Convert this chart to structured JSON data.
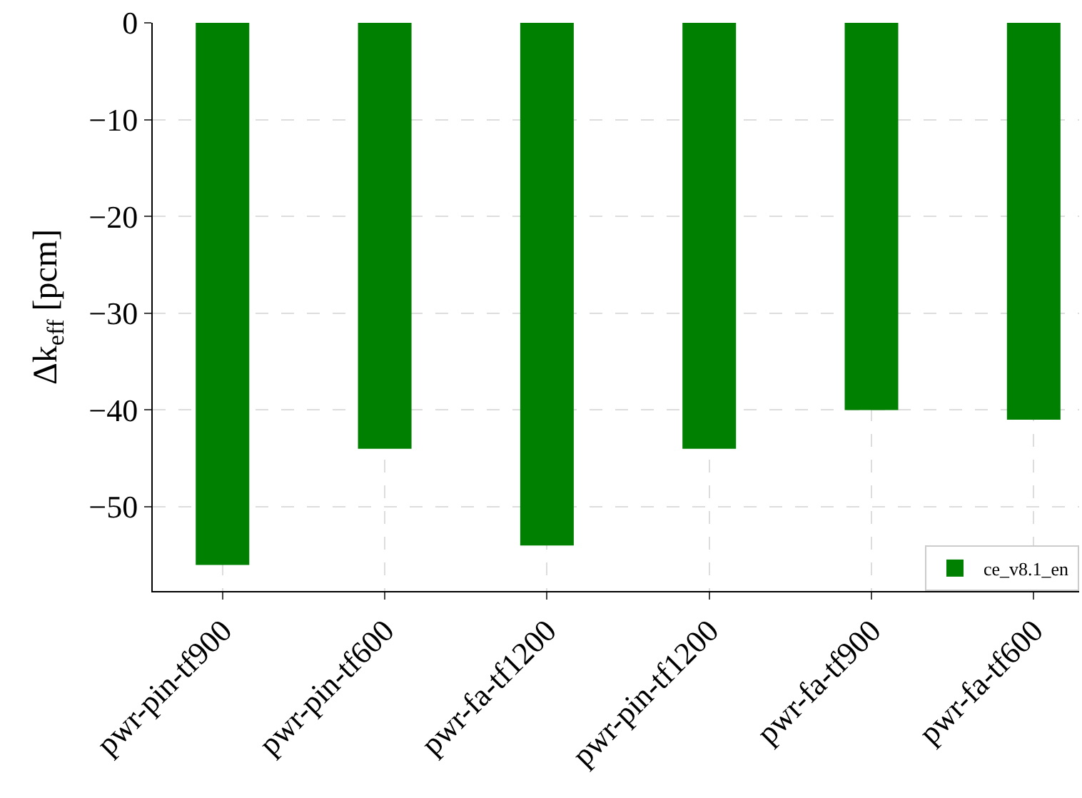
{
  "chart_data": {
    "type": "bar",
    "ylabel": "Δk$_{eff}$ [pcm]",
    "categories": [
      "pwr-pin-tf900",
      "pwr-pin-tf600",
      "pwr-fa-tf1200",
      "pwr-pin-tf1200",
      "pwr-fa-tf900",
      "pwr-fa-tf600"
    ],
    "series": [
      {
        "name": "ce_v8.1_en",
        "color": "#008000",
        "values": [
          -56,
          -44,
          -54,
          -44,
          -40,
          -41
        ]
      }
    ],
    "ylim": [
      -58.7,
      0
    ],
    "yticks": [
      0,
      -10,
      -20,
      -30,
      -40,
      -50
    ],
    "grid": true,
    "legend": "bottom right"
  }
}
